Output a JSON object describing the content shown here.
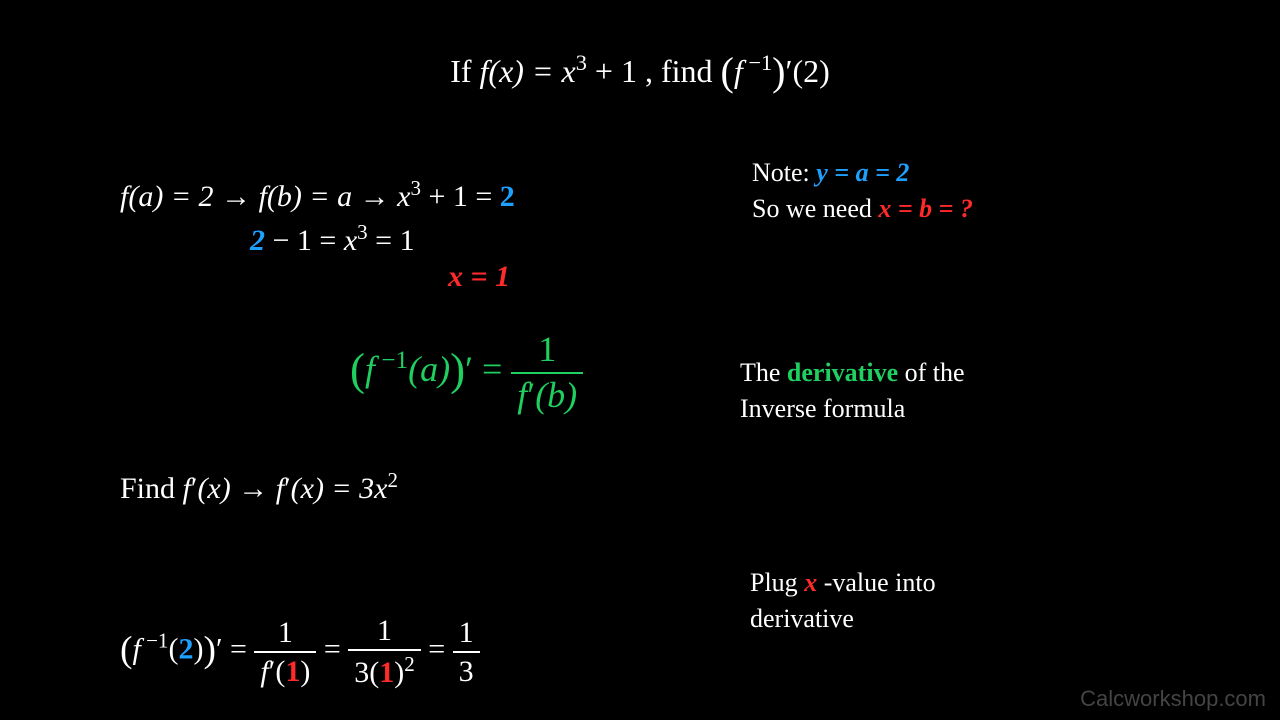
{
  "colors": {
    "white": "#ffffff",
    "blue": "#1ea0ff",
    "red": "#ff2a2a",
    "green": "#1fd060",
    "gray": "#444444",
    "bg": "#000000"
  },
  "title": {
    "pre": "If ",
    "fx_lhs": "f(x) = x",
    "exp": "3",
    "fx_plus": " + 1",
    "mid": ", find ",
    "g_open": "(",
    "g_f": "f",
    "g_sup": " −1",
    "g_close": ")",
    "g_prime": "′",
    "g_arg": "(2)"
  },
  "step1": {
    "fa": "f(a) = 2",
    "arrow": "  →  ",
    "gb": "f(b) = a",
    "arrow2": "  →  ",
    "xcube": "x",
    "exp": "3",
    "plus1eq": " + 1 = ",
    "two": "2",
    "xcube_eq": "x",
    "exp2": "3",
    "eq1": " = 1",
    "x_eq_1": "x = 1"
  },
  "annot1": {
    "l1a": "Note: ",
    "l1b": "y = a = 2",
    "l2a": "So we need ",
    "l2b": "x = b = ?"
  },
  "formula": {
    "open": "(",
    "f": "f",
    "sup": " −1",
    "arg": "(a)",
    "close": ")",
    "prime": "′",
    "eq": "  =  ",
    "num": "1",
    "den_f": "f",
    "den_prime": "′",
    "den_arg": "(b)"
  },
  "annot2": {
    "l1a": "The ",
    "l1b": "derivative",
    "l1c": " of the",
    "l2": "Inverse formula"
  },
  "step2": {
    "find": "Find  ",
    "f": "f",
    "prime": "′",
    "arg": "(x)",
    "arrow": "   →   ",
    "f2": "f",
    "prime2": "′",
    "arg2": "(x) = 3x",
    "exp": "2"
  },
  "annot3": {
    "l1a": "Plug ",
    "l1b": "x",
    "l1c": "-value into",
    "l2": "derivative"
  },
  "step3": {
    "open": "(",
    "f": "f",
    "sup": " −1",
    "arg_open": "(",
    "two": "2",
    "arg_close": ")",
    "close": ")",
    "prime": "′",
    "eq": "  =  ",
    "num1": "1",
    "den_f": "f",
    "den_prime": "′",
    "den_open": "(",
    "one": "1",
    "den_close": ")",
    "eq2": "  =  ",
    "num2": "1",
    "den2_a": "3(",
    "den2_one": "1",
    "den2_b": ")",
    "den2_exp": "2",
    "eq3": "  =  ",
    "num3": "1",
    "den3": "3"
  },
  "watermark": "Calcworkshop.com"
}
